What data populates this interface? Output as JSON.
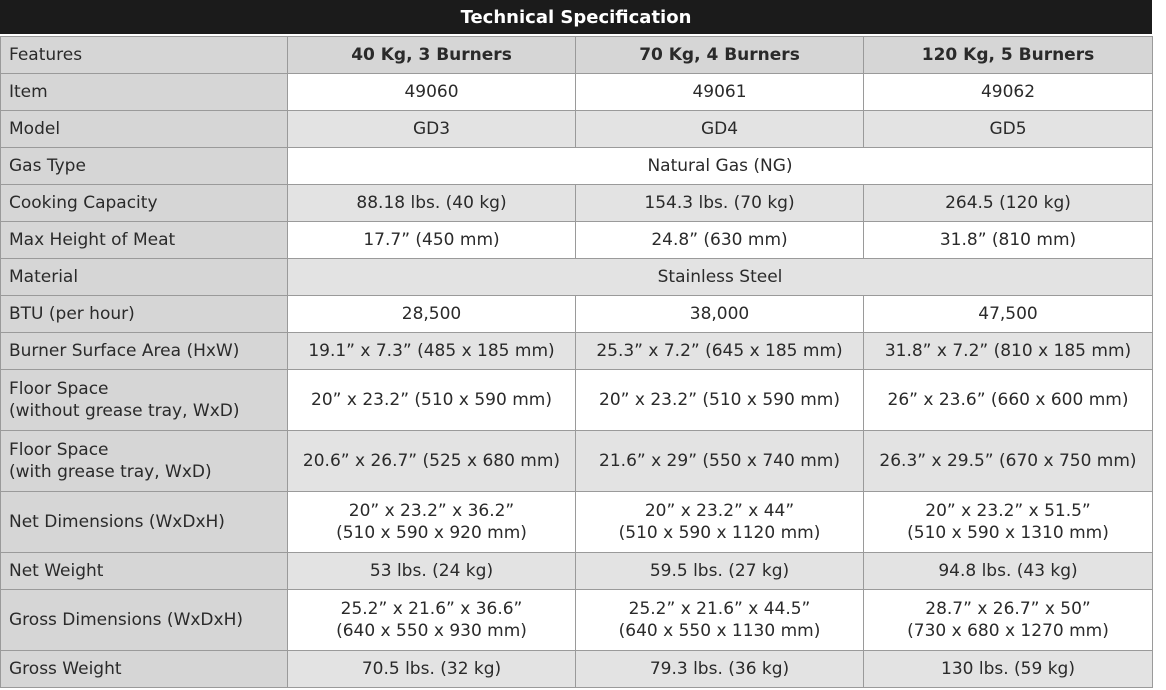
{
  "title": "Technical Specification",
  "columns": [
    "Features",
    "40 Kg, 3 Burners",
    "70 Kg, 4 Burners",
    "120 Kg, 5 Burners"
  ],
  "rows": [
    {
      "label": [
        "Item"
      ],
      "values": [
        [
          "49060"
        ],
        [
          "49061"
        ],
        [
          "49062"
        ]
      ]
    },
    {
      "label": [
        "Model"
      ],
      "values": [
        [
          "GD3"
        ],
        [
          "GD4"
        ],
        [
          "GD5"
        ]
      ]
    },
    {
      "label": [
        "Gas Type"
      ],
      "span_value": "Natural Gas (NG)"
    },
    {
      "label": [
        "Cooking Capacity"
      ],
      "values": [
        [
          "88.18 lbs. (40 kg)"
        ],
        [
          "154.3 lbs. (70 kg)"
        ],
        [
          "264.5 (120 kg)"
        ]
      ]
    },
    {
      "label": [
        "Max Height of Meat"
      ],
      "values": [
        [
          "17.7” (450 mm)"
        ],
        [
          "24.8” (630 mm)"
        ],
        [
          "31.8” (810 mm)"
        ]
      ]
    },
    {
      "label": [
        "Material"
      ],
      "span_value": "Stainless Steel"
    },
    {
      "label": [
        "BTU (per hour)"
      ],
      "values": [
        [
          "28,500"
        ],
        [
          "38,000"
        ],
        [
          "47,500"
        ]
      ]
    },
    {
      "label": [
        "Burner Surface Area (HxW)"
      ],
      "values": [
        [
          "19.1” x 7.3” (485 x 185 mm)"
        ],
        [
          "25.3” x 7.2” (645 x 185 mm)"
        ],
        [
          "31.8” x 7.2” (810 x 185 mm)"
        ]
      ]
    },
    {
      "label": [
        "Floor Space",
        "(without grease tray, WxD)"
      ],
      "values": [
        [
          "20” x 23.2” (510 x 590 mm)"
        ],
        [
          "20” x 23.2” (510 x 590 mm)"
        ],
        [
          "26” x 23.6” (660 x 600 mm)"
        ]
      ]
    },
    {
      "label": [
        "Floor Space",
        "(with grease tray, WxD)"
      ],
      "values": [
        [
          "20.6” x 26.7” (525 x 680 mm)"
        ],
        [
          "21.6” x 29” (550 x 740 mm)"
        ],
        [
          "26.3” x 29.5” (670 x 750 mm)"
        ]
      ]
    },
    {
      "label": [
        "Net Dimensions (WxDxH)"
      ],
      "values": [
        [
          "20” x 23.2” x 36.2”",
          "(510 x 590 x 920 mm)"
        ],
        [
          "20” x 23.2” x 44”",
          "(510 x 590 x 1120 mm)"
        ],
        [
          "20” x 23.2” x 51.5”",
          "(510 x 590 x 1310 mm)"
        ]
      ]
    },
    {
      "label": [
        "Net Weight"
      ],
      "values": [
        [
          "53 lbs. (24 kg)"
        ],
        [
          "59.5 lbs. (27 kg)"
        ],
        [
          "94.8 lbs. (43 kg)"
        ]
      ]
    },
    {
      "label": [
        "Gross Dimensions (WxDxH)"
      ],
      "values": [
        [
          "25.2” x 21.6” x 36.6”",
          "(640 x 550 x 930 mm)"
        ],
        [
          "25.2” x 21.6” x 44.5”",
          "(640 x 550 x 1130 mm)"
        ],
        [
          "28.7” x 26.7” x 50”",
          "(730 x 680 x 1270 mm)"
        ]
      ]
    },
    {
      "label": [
        "Gross Weight"
      ],
      "values": [
        [
          "70.5 lbs. (32 kg)"
        ],
        [
          "79.3 lbs. (36 kg)"
        ],
        [
          "130 lbs. (59 kg)"
        ]
      ]
    }
  ]
}
